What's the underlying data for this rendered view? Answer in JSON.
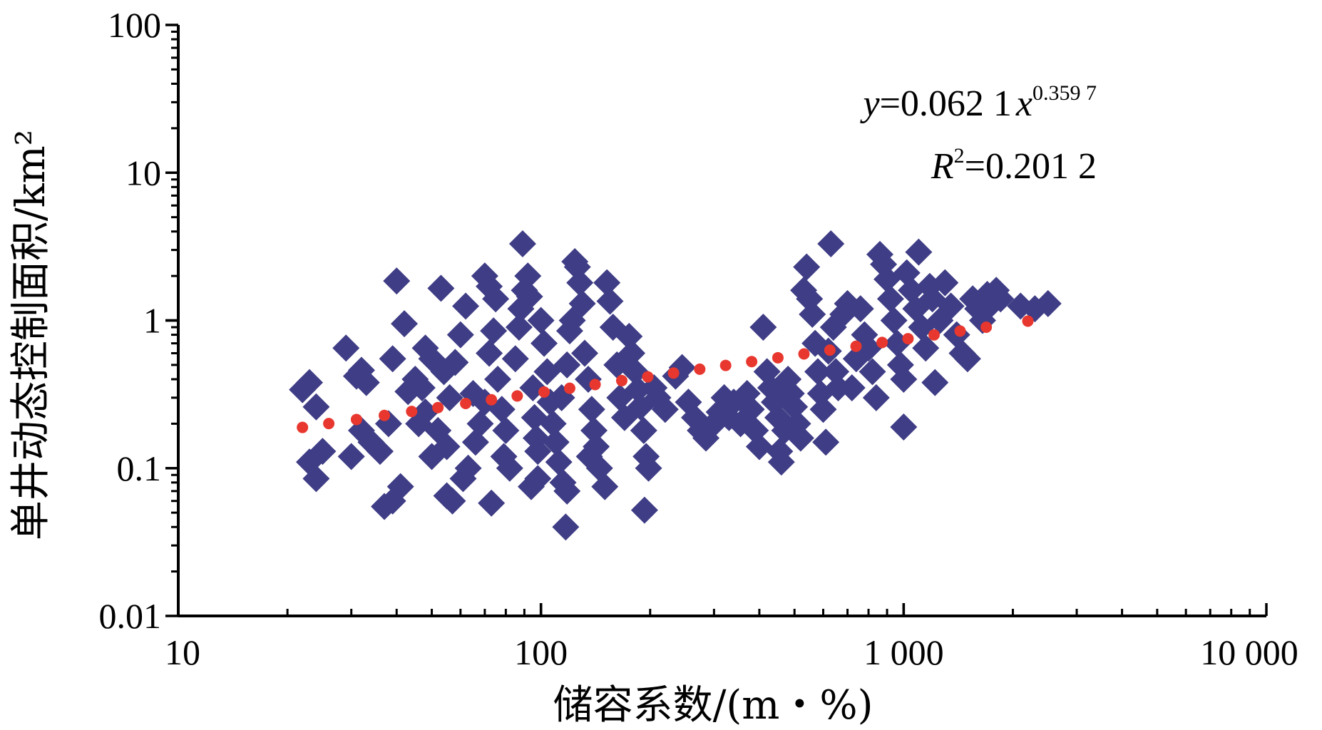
{
  "chart_data": {
    "type": "scatter",
    "xscale": "log",
    "yscale": "log",
    "xlim": [
      10,
      10000
    ],
    "ylim": [
      0.01,
      100
    ],
    "xlabel": "储容系数/(m・%)",
    "ylabel": "单井动态控制面积/km²",
    "x_tick_labels": [
      "10",
      "100",
      "1 000",
      "10 000"
    ],
    "x_ticks": [
      10,
      100,
      1000,
      10000
    ],
    "y_tick_labels": [
      "0.01",
      "0.1",
      "1",
      "10",
      "100"
    ],
    "y_ticks": [
      0.01,
      0.1,
      1,
      10,
      100
    ],
    "grid": false,
    "colors": {
      "points": "#3f3d85",
      "trend": "#e8372e",
      "axis": "#000000"
    },
    "annotation": {
      "equation": {
        "y": "y",
        "coef": "=0.062 1",
        "x": "x",
        "exp": "0.359 7"
      },
      "r2": {
        "R": "R",
        "sup": "2",
        "value": "=0.201 2"
      }
    },
    "series": [
      {
        "type": "scatter",
        "marker": "diamond",
        "points": [
          [
            22,
            0.34
          ],
          [
            23,
            0.38
          ],
          [
            24,
            0.26
          ],
          [
            23,
            0.11
          ],
          [
            24,
            0.085
          ],
          [
            25,
            0.13
          ],
          [
            29,
            0.65
          ],
          [
            31,
            0.42
          ],
          [
            32,
            0.46
          ],
          [
            33,
            0.38
          ],
          [
            30,
            0.12
          ],
          [
            32,
            0.18
          ],
          [
            34,
            0.15
          ],
          [
            36,
            0.13
          ],
          [
            38,
            0.2
          ],
          [
            37,
            0.055
          ],
          [
            39,
            0.06
          ],
          [
            41,
            0.075
          ],
          [
            39,
            0.55
          ],
          [
            42,
            0.95
          ],
          [
            40,
            1.85
          ],
          [
            43,
            0.33
          ],
          [
            45,
            0.4
          ],
          [
            47,
            0.35
          ],
          [
            48,
            0.65
          ],
          [
            50,
            0.55
          ],
          [
            46,
            0.2
          ],
          [
            48,
            0.24
          ],
          [
            52,
            0.18
          ],
          [
            55,
            0.14
          ],
          [
            50,
            0.12
          ],
          [
            53,
            1.65
          ],
          [
            54,
            0.45
          ],
          [
            56,
            0.3
          ],
          [
            58,
            0.52
          ],
          [
            60,
            0.8
          ],
          [
            62,
            1.25
          ],
          [
            55,
            0.065
          ],
          [
            57,
            0.06
          ],
          [
            61,
            0.085
          ],
          [
            63,
            0.1
          ],
          [
            65,
            0.32
          ],
          [
            66,
            0.15
          ],
          [
            68,
            0.2
          ],
          [
            70,
            0.28
          ],
          [
            72,
            0.6
          ],
          [
            74,
            0.85
          ],
          [
            70,
            2.0
          ],
          [
            72,
            1.7
          ],
          [
            75,
            1.4
          ],
          [
            76,
            0.4
          ],
          [
            78,
            0.25
          ],
          [
            80,
            0.18
          ],
          [
            79,
            0.12
          ],
          [
            82,
            0.1
          ],
          [
            73,
            0.058
          ],
          [
            85,
            0.55
          ],
          [
            87,
            0.9
          ],
          [
            88,
            1.2
          ],
          [
            89,
            3.3
          ],
          [
            90,
            1.6
          ],
          [
            92,
            2.0
          ],
          [
            93,
            1.45
          ],
          [
            95,
            0.35
          ],
          [
            96,
            0.22
          ],
          [
            97,
            0.16
          ],
          [
            98,
            0.13
          ],
          [
            94,
            0.075
          ],
          [
            98,
            0.085
          ],
          [
            100,
            1.0
          ],
          [
            102,
            0.7
          ],
          [
            104,
            0.45
          ],
          [
            106,
            0.28
          ],
          [
            108,
            0.2
          ],
          [
            110,
            0.15
          ],
          [
            112,
            0.11
          ],
          [
            115,
            0.08
          ],
          [
            117,
            0.04
          ],
          [
            118,
            0.07
          ],
          [
            114,
            0.3
          ],
          [
            118,
            0.5
          ],
          [
            120,
            0.85
          ],
          [
            122,
            1.0
          ],
          [
            124,
            2.5
          ],
          [
            126,
            2.3
          ],
          [
            128,
            1.8
          ],
          [
            130,
            1.3
          ],
          [
            132,
            0.6
          ],
          [
            135,
            0.4
          ],
          [
            138,
            0.25
          ],
          [
            140,
            0.18
          ],
          [
            142,
            0.14
          ],
          [
            145,
            0.1
          ],
          [
            150,
            0.075
          ],
          [
            136,
            0.12
          ],
          [
            152,
            1.8
          ],
          [
            155,
            1.35
          ],
          [
            158,
            0.9
          ],
          [
            162,
            0.5
          ],
          [
            165,
            0.3
          ],
          [
            170,
            0.22
          ],
          [
            175,
            0.78
          ],
          [
            178,
            0.6
          ],
          [
            182,
            0.45
          ],
          [
            185,
            0.34
          ],
          [
            188,
            0.26
          ],
          [
            192,
            0.18
          ],
          [
            195,
            0.12
          ],
          [
            198,
            0.1
          ],
          [
            193,
            0.052
          ],
          [
            205,
            0.35
          ],
          [
            210,
            0.3
          ],
          [
            220,
            0.25
          ],
          [
            235,
            0.42
          ],
          [
            245,
            0.48
          ],
          [
            255,
            0.28
          ],
          [
            265,
            0.22
          ],
          [
            275,
            0.18
          ],
          [
            285,
            0.16
          ],
          [
            300,
            0.2
          ],
          [
            310,
            0.24
          ],
          [
            320,
            0.3
          ],
          [
            330,
            0.22
          ],
          [
            340,
            0.28
          ],
          [
            355,
            0.2
          ],
          [
            370,
            0.32
          ],
          [
            380,
            0.25
          ],
          [
            390,
            0.18
          ],
          [
            400,
            0.14
          ],
          [
            410,
            0.9
          ],
          [
            420,
            0.45
          ],
          [
            430,
            0.35
          ],
          [
            440,
            0.28
          ],
          [
            450,
            0.22
          ],
          [
            455,
            0.13
          ],
          [
            460,
            0.11
          ],
          [
            470,
            0.18
          ],
          [
            480,
            0.4
          ],
          [
            490,
            0.32
          ],
          [
            500,
            0.26
          ],
          [
            510,
            0.2
          ],
          [
            520,
            0.16
          ],
          [
            530,
            1.6
          ],
          [
            540,
            2.3
          ],
          [
            550,
            1.4
          ],
          [
            560,
            1.1
          ],
          [
            570,
            0.7
          ],
          [
            580,
            0.45
          ],
          [
            590,
            0.32
          ],
          [
            600,
            0.25
          ],
          [
            610,
            0.15
          ],
          [
            620,
            0.62
          ],
          [
            630,
            3.3
          ],
          [
            640,
            0.9
          ],
          [
            650,
            0.45
          ],
          [
            660,
            0.35
          ],
          [
            680,
            1.1
          ],
          [
            700,
            1.3
          ],
          [
            720,
            0.35
          ],
          [
            740,
            0.55
          ],
          [
            760,
            1.2
          ],
          [
            780,
            0.8
          ],
          [
            800,
            0.65
          ],
          [
            820,
            0.45
          ],
          [
            840,
            0.3
          ],
          [
            860,
            2.8
          ],
          [
            880,
            2.4
          ],
          [
            900,
            1.9
          ],
          [
            920,
            1.4
          ],
          [
            940,
            1.0
          ],
          [
            960,
            0.7
          ],
          [
            980,
            0.5
          ],
          [
            1000,
            0.4
          ],
          [
            1000,
            0.19
          ],
          [
            1020,
            2.1
          ],
          [
            1050,
            1.6
          ],
          [
            1080,
            1.2
          ],
          [
            1100,
            2.9
          ],
          [
            1120,
            0.9
          ],
          [
            1150,
            0.65
          ],
          [
            1180,
            1.7
          ],
          [
            1200,
            1.4
          ],
          [
            1220,
            0.38
          ],
          [
            1260,
            1.0
          ],
          [
            1300,
            1.8
          ],
          [
            1350,
            1.25
          ],
          [
            1400,
            0.8
          ],
          [
            1450,
            0.6
          ],
          [
            1500,
            0.55
          ],
          [
            1550,
            1.4
          ],
          [
            1600,
            1.2
          ],
          [
            1650,
            1.0
          ],
          [
            1700,
            1.5
          ],
          [
            1750,
            1.3
          ],
          [
            1800,
            1.6
          ],
          [
            1850,
            1.4
          ],
          [
            2100,
            1.25
          ],
          [
            2300,
            1.2
          ],
          [
            2500,
            1.3
          ]
        ]
      },
      {
        "type": "line",
        "style": "dotted",
        "fit": {
          "a": 0.0621,
          "b": 0.3597
        },
        "x": [
          22,
          26,
          31,
          37,
          44,
          52,
          62,
          73,
          86,
          102,
          120,
          141,
          167,
          197,
          232,
          274,
          323,
          381,
          450,
          531,
          626,
          739,
          872,
          1028,
          1213,
          1431,
          1689,
          2200
        ]
      }
    ]
  }
}
